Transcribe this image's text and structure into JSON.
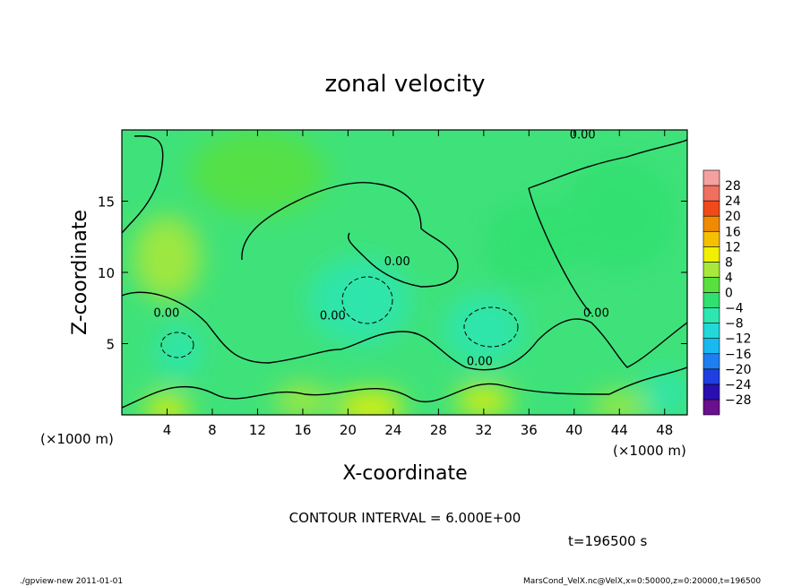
{
  "chart_data": {
    "type": "heatmap",
    "title": "zonal velocity",
    "xlabel": "X-coordinate",
    "ylabel": "Z-coordinate",
    "x_unit_label": "(×1000 m)",
    "y_unit_label": "(×1000 m)",
    "xlim": [
      0,
      50
    ],
    "ylim": [
      0,
      20
    ],
    "x_ticks": [
      4,
      8,
      12,
      16,
      20,
      24,
      28,
      32,
      36,
      40,
      44,
      48
    ],
    "y_ticks": [
      5,
      10,
      15
    ],
    "contour_interval_text": "CONTOUR INTERVAL = 6.000E+00",
    "time_text": "t=196500 s",
    "contour_label": "0.00",
    "colorbar": {
      "levels": [
        -28,
        -24,
        -20,
        -16,
        -12,
        -8,
        -4,
        0,
        4,
        8,
        12,
        16,
        20,
        24,
        28
      ],
      "colors": [
        "#6a0f8e",
        "#2a0fb0",
        "#1f3fe0",
        "#1e7ff0",
        "#19b8f0",
        "#22d8d8",
        "#2ee6b0",
        "#30e070",
        "#58e040",
        "#a8e83a",
        "#f0f000",
        "#f5c000",
        "#f08a00",
        "#f04a1a",
        "#f07060",
        "#f4a0a0"
      ]
    },
    "field": {
      "description_note": "",
      "blobs": [
        {
          "x": 21,
          "z": 8,
          "value": -7,
          "rx": 4.5,
          "rz": 3
        },
        {
          "x": 32,
          "z": 6,
          "value": -8,
          "rx": 3.5,
          "rz": 2.5
        },
        {
          "x": 5,
          "z": 4.5,
          "value": -6,
          "rx": 2,
          "rz": 1.8
        },
        {
          "x": 44,
          "z": 14,
          "value": -4,
          "rx": 5,
          "rz": 4
        },
        {
          "x": 36,
          "z": 12,
          "value": -2,
          "rx": 4,
          "rz": 3
        },
        {
          "x": 48,
          "z": 1.5,
          "value": -7,
          "rx": 2,
          "rz": 1.5
        },
        {
          "x": 4,
          "z": 11,
          "value": 5,
          "rx": 3,
          "rz": 3
        },
        {
          "x": 22,
          "z": 0.5,
          "value": 10,
          "rx": 3,
          "rz": 1.2
        },
        {
          "x": 4,
          "z": 0.4,
          "value": 8,
          "rx": 2,
          "rz": 1
        },
        {
          "x": 32,
          "z": 1,
          "value": 9,
          "rx": 2.5,
          "rz": 1
        },
        {
          "x": 16,
          "z": 1,
          "value": 6,
          "rx": 2.5,
          "rz": 1.2
        },
        {
          "x": 44,
          "z": 0.6,
          "value": 6,
          "rx": 2.5,
          "rz": 1
        },
        {
          "x": 12,
          "z": 17,
          "value": 2,
          "rx": 6,
          "rz": 3
        }
      ]
    }
  },
  "footer": {
    "left": "./gpview-new  2011-01-01",
    "right": "MarsCond_VelX.nc@VelX,x=0:50000,z=0:20000,t=196500"
  }
}
